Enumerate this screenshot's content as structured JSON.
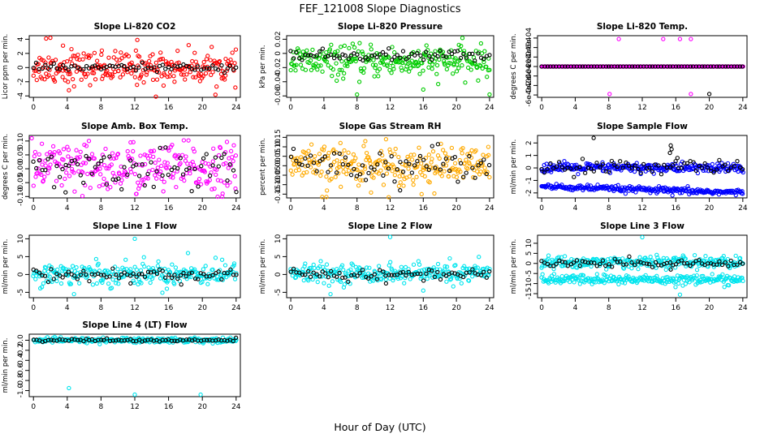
{
  "figure": {
    "title": "FEF_121008  Slope Diagnostics",
    "xlabel": "Hour of Day (UTC)"
  },
  "chart_data": [
    {
      "type": "scatter",
      "title": "Slope Li-820 CO2",
      "ylabel": "Licor ppm per min.",
      "ylim": [
        -4.2,
        4.5
      ],
      "yticks": [
        -4,
        -2,
        0,
        2,
        4
      ],
      "xlim": [
        -0.5,
        24.5
      ],
      "xticks": [
        0,
        4,
        8,
        12,
        16,
        20,
        24
      ],
      "series": [
        {
          "color": "#ff0000",
          "center": 0,
          "spread": 1.1,
          "outliers": [
            [
              1.5,
              4.1
            ],
            [
              2,
              4.2
            ],
            [
              3.5,
              3.1
            ],
            [
              4.5,
              2.6
            ],
            [
              14.5,
              -4.1
            ],
            [
              4.2,
              -3.2
            ],
            [
              8.1,
              2.4
            ],
            [
              12.3,
              3.9
            ]
          ]
        },
        {
          "color": "#000000",
          "center": 0,
          "spread": 0.25,
          "outliers": []
        }
      ]
    },
    {
      "type": "scatter",
      "title": "Slope Li-820 Pressure",
      "ylabel": "kPa per min.",
      "ylim": [
        -0.062,
        0.025
      ],
      "yticks": [
        -0.06,
        -0.04,
        -0.02,
        0,
        0.02
      ],
      "xlim": [
        -0.5,
        24.5
      ],
      "xticks": [
        0,
        4,
        8,
        12,
        16,
        20,
        24
      ],
      "series": [
        {
          "color": "#00cc00",
          "center": -0.012,
          "spread": 0.011,
          "outliers": [
            [
              0.3,
              0.002
            ],
            [
              8,
              -0.058
            ],
            [
              16,
              -0.051
            ],
            [
              24,
              -0.058
            ],
            [
              20.3,
              0.012
            ]
          ]
        },
        {
          "color": "#000000",
          "center": -0.003,
          "spread": 0.004,
          "outliers": []
        }
      ]
    },
    {
      "type": "scatter",
      "title": "Slope Li-820 Temp.",
      "ylabel": "degrees C per min.",
      "ylim": [
        -0.00065,
        0.00065
      ],
      "yticks": [
        -0.0006,
        -0.0004,
        -0.0002,
        0,
        0.0002,
        0.0004,
        0.0006
      ],
      "ytick_labels": [
        "-6e-04",
        "-4e-04",
        "-2e-04",
        "0e+00",
        "2e-04",
        "4e-04",
        "6e-04"
      ],
      "xlim": [
        -0.5,
        24.5
      ],
      "xticks": [
        0,
        4,
        8,
        12,
        16,
        20,
        24
      ],
      "series": [
        {
          "color": "#ff00ff",
          "center": 0,
          "spread": 0,
          "outliers": [
            [
              9.2,
              0.00058
            ],
            [
              14.5,
              0.00058
            ],
            [
              16.5,
              0.00058
            ],
            [
              17.8,
              0.00058
            ],
            [
              8.1,
              -0.00058
            ],
            [
              17.8,
              -0.00058
            ]
          ]
        },
        {
          "color": "#000000",
          "center": 0,
          "spread": 0,
          "outliers": [
            [
              20,
              -0.00058
            ]
          ]
        }
      ]
    },
    {
      "type": "scatter",
      "title": "Slope Amb. Box Temp.",
      "ylabel": "degrees C per min.",
      "ylim": [
        -0.105,
        0.12
      ],
      "yticks": [
        -0.1,
        -0.05,
        0,
        0.05,
        0.1
      ],
      "ytick_labels": [
        "-0.10",
        "-0.05",
        "0.00",
        "0.05",
        "0.10"
      ],
      "xlim": [
        -0.5,
        24.5
      ],
      "xticks": [
        0,
        4,
        8,
        12,
        16,
        20,
        24
      ],
      "series": [
        {
          "color": "#ff00ff",
          "center": 0,
          "spread": 0.045,
          "outliers": [
            [
              -0.2,
              0.11
            ],
            [
              5.8,
              -0.098
            ],
            [
              1,
              0.09
            ],
            [
              11.5,
              0.095
            ]
          ]
        },
        {
          "color": "#000000",
          "center": 0,
          "spread": 0.035,
          "outliers": [
            [
              3.8,
              -0.085
            ]
          ]
        }
      ]
    },
    {
      "type": "scatter",
      "title": "Slope Gas Stream RH",
      "ylabel": "percent per min.",
      "ylim": [
        -0.17,
        0.16
      ],
      "yticks": [
        -0.15,
        -0.1,
        -0.05,
        0,
        0.05,
        0.1,
        0.15
      ],
      "ytick_labels": [
        "-0.15",
        "-0.10",
        "-0.05",
        "0.00",
        "0.05",
        "0.10",
        "0.15"
      ],
      "xlim": [
        -0.5,
        24.5
      ],
      "xticks": [
        0,
        4,
        8,
        12,
        16,
        20,
        24
      ],
      "series": [
        {
          "color": "#ffaa00",
          "center": 0,
          "spread": 0.05,
          "outliers": [
            [
              3.8,
              -0.165
            ],
            [
              4.3,
              -0.165
            ],
            [
              9,
              0.13
            ],
            [
              11.5,
              0.14
            ],
            [
              6,
              0.12
            ],
            [
              15.8,
              -0.15
            ]
          ]
        },
        {
          "color": "#000000",
          "center": 0.01,
          "spread": 0.04,
          "outliers": [
            [
              13.2,
              -0.13
            ]
          ]
        }
      ]
    },
    {
      "type": "scatter",
      "title": "Slope Sample Flow",
      "ylabel": "ml/min per min.",
      "ylim": [
        -2.4,
        2.6
      ],
      "yticks": [
        -2,
        -1,
        0,
        1,
        2
      ],
      "xlim": [
        -0.5,
        24.5
      ],
      "xticks": [
        0,
        4,
        8,
        12,
        16,
        20,
        24
      ],
      "series": [
        {
          "color": "#0000ff",
          "center": 0,
          "spread": 0.2,
          "outliers": []
        },
        {
          "color": "#0000ff",
          "center": -1.5,
          "spread": 0.12,
          "slope": -0.02,
          "outliers": [
            [
              15.6,
              -2.2
            ]
          ]
        },
        {
          "color": "#000000",
          "center": 0.1,
          "spread": 0.25,
          "outliers": [
            [
              6.2,
              2.4
            ],
            [
              15.4,
              1.8
            ],
            [
              15.5,
              1.5
            ],
            [
              15.3,
              1.2
            ],
            [
              16.2,
              0.8
            ]
          ]
        }
      ]
    },
    {
      "type": "scatter",
      "title": "Slope Line 1 Flow",
      "ylabel": "ml/min per min.",
      "ylim": [
        -6.5,
        11
      ],
      "yticks": [
        -5,
        0,
        5,
        10
      ],
      "xlim": [
        -0.5,
        24.5
      ],
      "xticks": [
        0,
        4,
        8,
        12,
        16,
        20,
        24
      ],
      "series": [
        {
          "color": "#00e5ee",
          "center": 0.3,
          "spread": 1.6,
          "outliers": [
            [
              12,
              10
            ],
            [
              4.8,
              -5.5
            ],
            [
              18.3,
              6
            ],
            [
              15.8,
              -4
            ]
          ]
        },
        {
          "color": "#000000",
          "center": 0,
          "spread": 0.9,
          "outliers": [
            [
              11.5,
              -2.5
            ],
            [
              17.5,
              -2.8
            ]
          ]
        }
      ]
    },
    {
      "type": "scatter",
      "title": "Slope Line 2 Flow",
      "ylabel": "ml/min per min.",
      "ylim": [
        -6.5,
        11
      ],
      "yticks": [
        -5,
        0,
        5,
        10
      ],
      "xlim": [
        -0.5,
        24.5
      ],
      "xticks": [
        0,
        4,
        8,
        12,
        16,
        20,
        24
      ],
      "series": [
        {
          "color": "#00e5ee",
          "center": 0.3,
          "spread": 1.3,
          "outliers": [
            [
              12,
              10.5
            ],
            [
              4.8,
              -5.5
            ],
            [
              16,
              -4.5
            ],
            [
              19.2,
              4.5
            ]
          ]
        },
        {
          "color": "#000000",
          "center": 0,
          "spread": 0.8,
          "outliers": [
            [
              11.5,
              -2.5
            ]
          ]
        }
      ]
    },
    {
      "type": "scatter",
      "title": "Slope Line 3 Flow",
      "ylabel": "ml/min per min.",
      "ylim": [
        -17,
        14
      ],
      "yticks": [
        -15,
        -10,
        -5,
        0,
        5,
        10
      ],
      "xlim": [
        -0.5,
        24.5
      ],
      "xticks": [
        0,
        4,
        8,
        12,
        16,
        20,
        24
      ],
      "series": [
        {
          "color": "#00e5ee",
          "center": 0.5,
          "spread": 1.5,
          "outliers": [
            [
              12,
              13
            ],
            [
              16.5,
              -15.5
            ]
          ]
        },
        {
          "color": "#00e5ee",
          "center": -8,
          "spread": 1.2,
          "outliers": []
        },
        {
          "color": "#000000",
          "center": 0,
          "spread": 0.9,
          "outliers": [
            [
              15.4,
              -3
            ]
          ]
        }
      ]
    },
    {
      "type": "scatter",
      "title": "Slope Line 4 (LT) Flow",
      "ylabel": "ml/min per min.",
      "ylim": [
        -1.12,
        0.12
      ],
      "yticks": [
        -1,
        -0.8,
        -0.6,
        -0.4,
        -0.2,
        0
      ],
      "ytick_labels": [
        "-1.0",
        "-0.8",
        "-0.6",
        "-0.4",
        "-0.2",
        "0.0"
      ],
      "xlim": [
        -0.5,
        24.5
      ],
      "xticks": [
        0,
        4,
        8,
        12,
        16,
        20,
        24
      ],
      "series": [
        {
          "color": "#00e5ee",
          "center": 0,
          "spread": 0.025,
          "outliers": [
            [
              4.2,
              -0.95
            ],
            [
              12,
              -1.08
            ],
            [
              19.8,
              -1.08
            ]
          ]
        },
        {
          "color": "#000000",
          "center": 0,
          "spread": 0.015,
          "outliers": []
        }
      ]
    }
  ]
}
